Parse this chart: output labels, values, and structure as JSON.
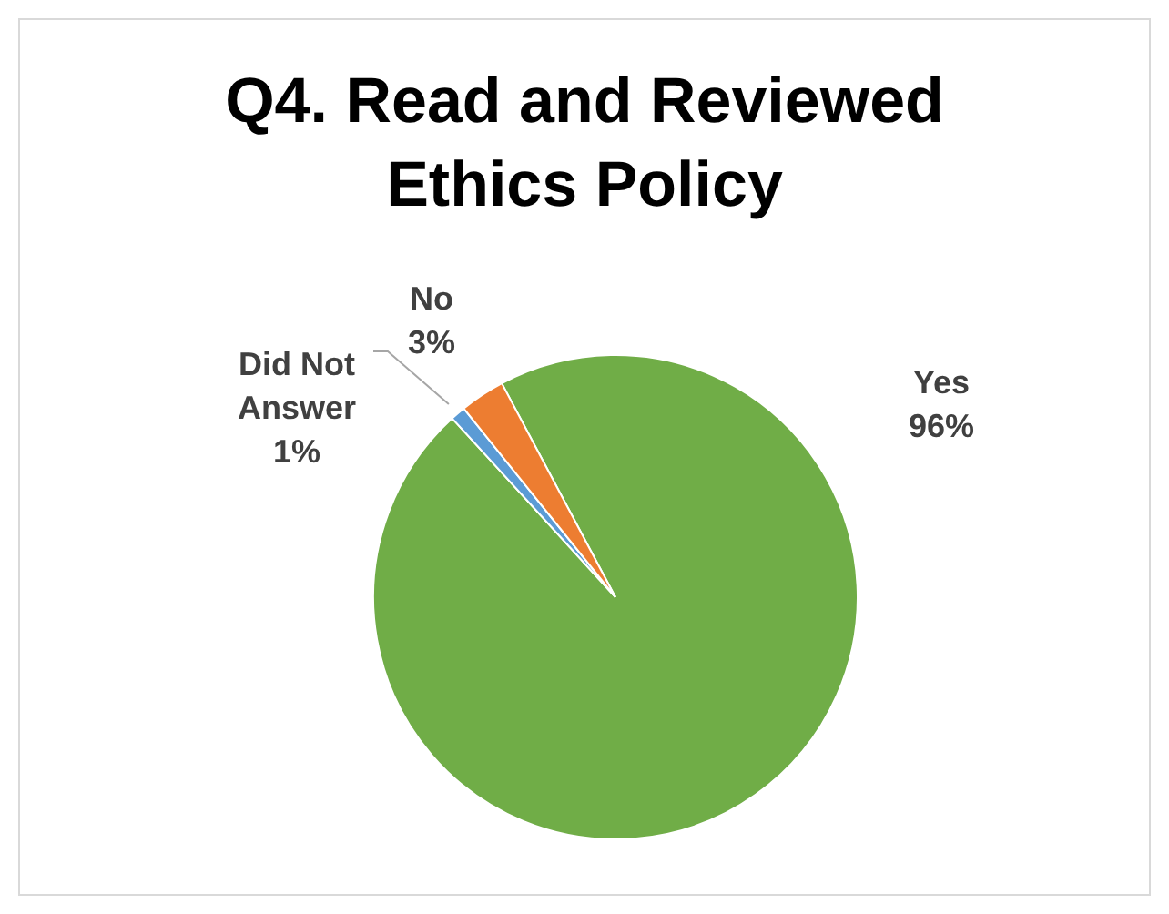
{
  "chart_data": {
    "type": "pie",
    "title": "Q4. Read and Reviewed Ethics Policy",
    "categories": [
      "Yes",
      "Did Not Answer",
      "No"
    ],
    "values": [
      96,
      1,
      3
    ],
    "colors": [
      "#70ad47",
      "#5b9bd5",
      "#ed7d31"
    ],
    "value_labels": [
      "96%",
      "1%",
      "3%"
    ],
    "legend": false
  }
}
